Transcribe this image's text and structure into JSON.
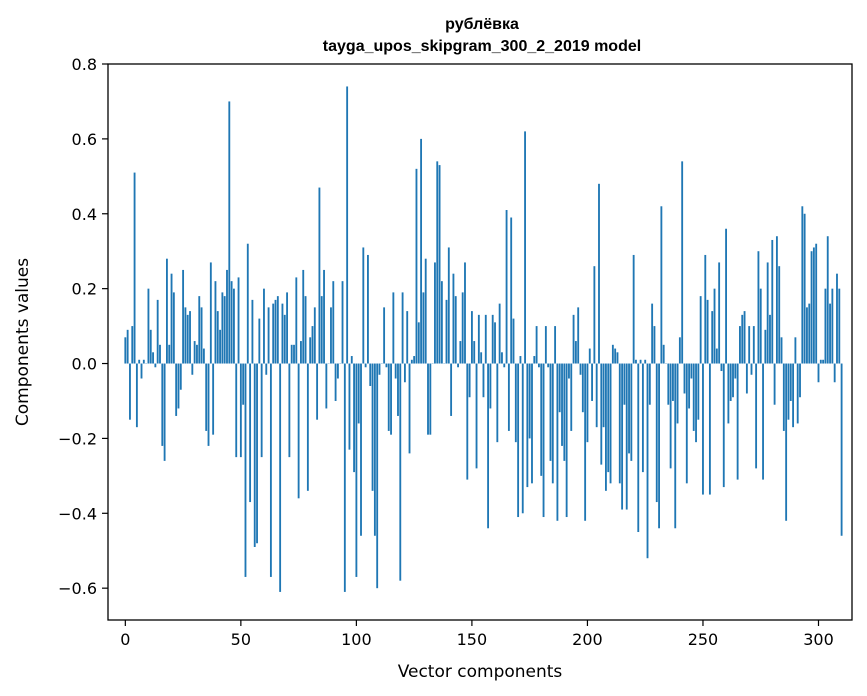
{
  "chart_data": {
    "type": "bar",
    "title": [
      "рублёвка",
      "tayga_upos_skipgram_300_2_2019 model"
    ],
    "xlabel": "Vector components",
    "ylabel": "Components values",
    "xlim": [
      -7.5,
      314.5
    ],
    "ylim": [
      -0.685,
      0.8
    ],
    "xticks": [
      0,
      50,
      100,
      150,
      200,
      250,
      300
    ],
    "yticks": [
      -0.6,
      -0.4,
      -0.2,
      0.0,
      0.2,
      0.4,
      0.6,
      0.8
    ],
    "ytick_labels": [
      "−0.6",
      "−0.4",
      "−0.2",
      "0.0",
      "0.2",
      "0.4",
      "0.6",
      "0.8"
    ],
    "bar_color": "#1f77b4",
    "grid": false,
    "values": [
      0.07,
      0.09,
      -0.15,
      0.1,
      0.51,
      -0.17,
      0.01,
      -0.04,
      0.01,
      0.0,
      0.2,
      0.09,
      0.03,
      -0.01,
      0.17,
      0.05,
      -0.22,
      -0.26,
      0.28,
      0.05,
      0.24,
      0.19,
      -0.14,
      -0.12,
      -0.07,
      0.25,
      0.15,
      0.13,
      0.14,
      -0.03,
      0.06,
      0.05,
      0.18,
      0.15,
      0.04,
      -0.18,
      -0.22,
      0.27,
      -0.19,
      0.22,
      0.14,
      0.09,
      0.19,
      0.18,
      0.25,
      0.7,
      0.22,
      0.2,
      -0.25,
      0.23,
      -0.25,
      -0.11,
      -0.57,
      0.32,
      -0.37,
      0.17,
      -0.49,
      -0.48,
      0.12,
      -0.25,
      0.2,
      -0.03,
      0.15,
      -0.57,
      0.16,
      0.17,
      0.18,
      -0.61,
      0.16,
      0.13,
      0.19,
      -0.25,
      0.05,
      0.05,
      0.23,
      -0.36,
      0.06,
      0.25,
      0.18,
      -0.34,
      0.07,
      0.1,
      0.15,
      -0.15,
      0.47,
      0.18,
      0.25,
      -0.12,
      0.0,
      0.15,
      0.22,
      -0.1,
      -0.04,
      0.0,
      0.22,
      -0.61,
      0.74,
      -0.23,
      0.02,
      -0.29,
      -0.57,
      -0.16,
      -0.46,
      0.31,
      -0.01,
      0.29,
      -0.06,
      -0.34,
      -0.46,
      -0.6,
      -0.03,
      0.0,
      0.15,
      -0.01,
      -0.18,
      -0.19,
      0.19,
      -0.04,
      -0.14,
      -0.58,
      0.19,
      -0.05,
      0.14,
      -0.24,
      0.01,
      0.02,
      0.52,
      0.11,
      0.6,
      0.19,
      0.28,
      -0.19,
      -0.19,
      0.0,
      0.27,
      0.54,
      0.53,
      0.22,
      0.0,
      0.17,
      0.31,
      -0.14,
      0.24,
      0.18,
      -0.01,
      0.06,
      0.19,
      0.27,
      -0.31,
      -0.09,
      0.14,
      0.06,
      -0.28,
      0.13,
      0.03,
      -0.09,
      0.13,
      -0.44,
      -0.12,
      0.13,
      0.11,
      -0.21,
      0.16,
      0.03,
      -0.01,
      0.41,
      -0.18,
      0.39,
      0.12,
      -0.21,
      -0.41,
      0.02,
      -0.4,
      0.62,
      -0.33,
      -0.2,
      -0.32,
      0.02,
      0.1,
      -0.01,
      -0.3,
      -0.41,
      0.1,
      -0.01,
      -0.26,
      -0.32,
      0.1,
      -0.42,
      -0.13,
      -0.22,
      -0.26,
      -0.41,
      -0.04,
      -0.18,
      0.13,
      0.06,
      0.15,
      -0.03,
      -0.13,
      -0.42,
      -0.21,
      0.04,
      -0.1,
      0.26,
      -0.17,
      0.48,
      -0.27,
      -0.17,
      -0.34,
      -0.29,
      -0.32,
      0.05,
      0.04,
      0.03,
      -0.32,
      -0.39,
      -0.11,
      -0.39,
      -0.24,
      -0.26,
      0.29,
      0.01,
      -0.45,
      0.01,
      -0.29,
      0.01,
      -0.52,
      -0.11,
      0.16,
      0.1,
      -0.37,
      -0.44,
      0.42,
      0.05,
      0.0,
      -0.11,
      -0.28,
      -0.1,
      -0.44,
      -0.16,
      0.07,
      0.54,
      -0.08,
      -0.32,
      -0.12,
      -0.04,
      -0.18,
      -0.21,
      -0.15,
      0.18,
      -0.35,
      0.29,
      0.17,
      -0.35,
      0.14,
      0.2,
      0.04,
      0.27,
      -0.02,
      -0.33,
      0.36,
      -0.16,
      -0.1,
      -0.09,
      -0.04,
      -0.31,
      0.1,
      0.13,
      0.14,
      -0.08,
      0.1,
      -0.03,
      0.1,
      -0.28,
      0.3,
      0.2,
      -0.31,
      0.09,
      0.27,
      0.13,
      0.33,
      -0.11,
      0.34,
      0.26,
      0.07,
      -0.18,
      -0.42,
      -0.15,
      -0.1,
      -0.17,
      0.07,
      -0.16,
      -0.09,
      0.42,
      0.4,
      0.15,
      0.16,
      0.3,
      0.31,
      0.32,
      -0.05,
      0.01,
      0.01,
      0.2,
      0.34,
      0.16,
      0.2,
      -0.05,
      0.24,
      0.2,
      -0.46
    ]
  }
}
